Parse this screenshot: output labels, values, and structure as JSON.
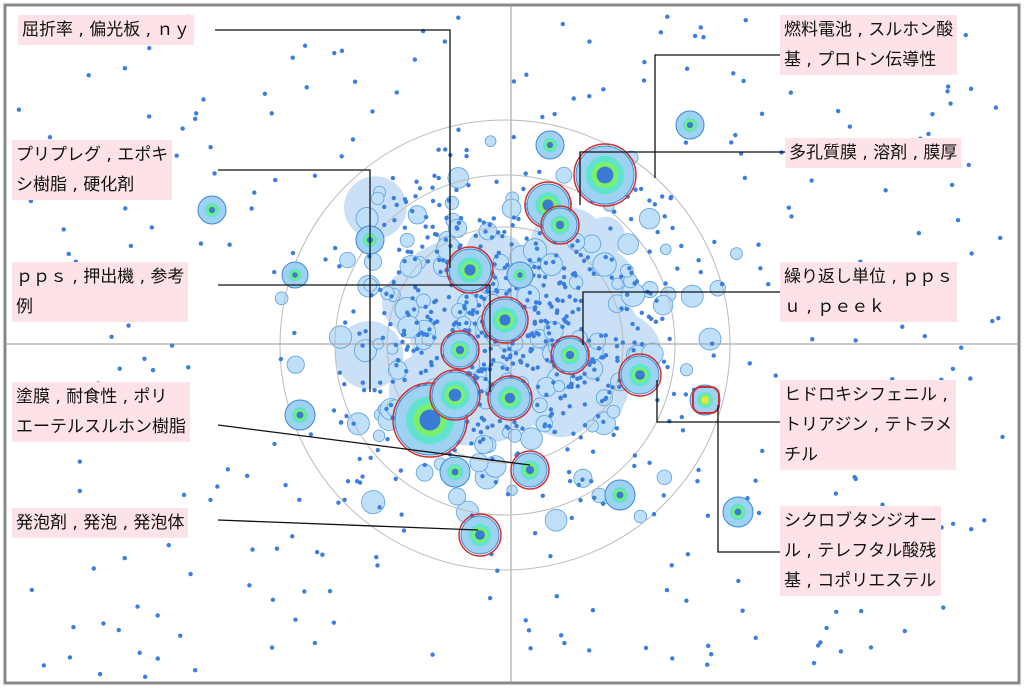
{
  "labels": [
    {
      "lines": [
        "屈折率 , 偏光板 , ｎｙ"
      ]
    },
    {
      "lines": [
        "プリプレグ , エポキ",
        "シ樹脂 , 硬化剤"
      ]
    },
    {
      "lines": [
        "ｐｐｓ , 押出機 , 参考",
        "例"
      ]
    },
    {
      "lines": [
        "塗膜 , 耐食性 , ポリ",
        "エーテルスルホン樹脂"
      ]
    },
    {
      "lines": [
        "発泡剤 , 発泡 , 発泡体"
      ]
    },
    {
      "lines": [
        "燃料電池 , スルホン酸",
        "基 , プロトン伝導性"
      ]
    },
    {
      "lines": [
        "多孔質膜 , 溶剤 , 膜厚"
      ]
    },
    {
      "lines": [
        "繰り返し単位 , ｐｐｓ",
        "ｕ , ｐｅｅｋ"
      ]
    },
    {
      "lines": [
        "ヒドロキシフェニル ,",
        "トリアジン , テトラメ",
        "チル"
      ]
    },
    {
      "lines": [
        "シクロブタンジオー",
        "ル , テレフタル酸残",
        "基 , コポリエステル"
      ]
    }
  ]
}
